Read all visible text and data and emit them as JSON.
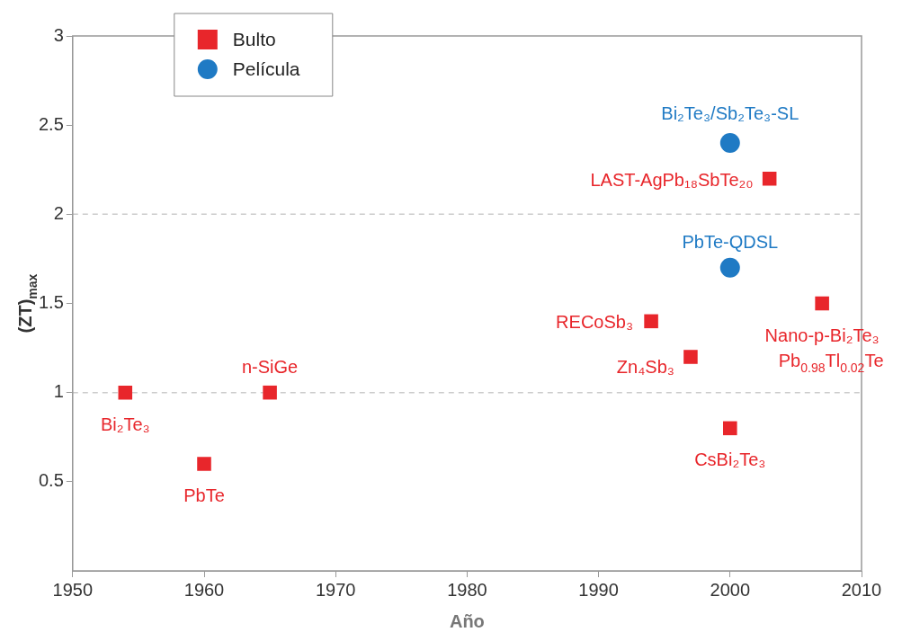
{
  "chart_data": {
    "type": "scatter",
    "xlabel": "Año",
    "ylabel": "(ZT)$_{max}$",
    "xlim": [
      1950,
      2010
    ],
    "xticks": [
      1950,
      1960,
      1970,
      1980,
      1990,
      2000,
      2010
    ],
    "ylim": [
      0,
      3
    ],
    "yticks": [
      0.5,
      1,
      1.5,
      2,
      2.5,
      3
    ],
    "legend": "top left",
    "grid": false,
    "series": [
      {
        "name": "Bulto",
        "color": "#e8262b",
        "marker": "square",
        "x": [
          1954,
          1960,
          1965,
          1994,
          1997,
          2000,
          2003,
          2007
        ],
        "values": [
          1.0,
          0.6,
          1.0,
          1.4,
          1.2,
          0.8,
          2.2,
          1.5
        ]
      },
      {
        "name": "Película",
        "color": "#1f7ac4",
        "marker": "circle",
        "x": [
          2000,
          2000
        ],
        "values": [
          2.4,
          1.7
        ]
      }
    ],
    "ref_lines": [
      {
        "axis": "y",
        "value": 1,
        "color": "#cccccc",
        "line_style": "dashed"
      },
      {
        "axis": "y",
        "value": 2,
        "color": "#cccccc",
        "line_style": "dashed"
      }
    ],
    "annotations": [
      {
        "text": "Bi₂Te₃",
        "x": 1954,
        "y": 1.0
      },
      {
        "text": "PbTe",
        "x": 1960,
        "y": 0.6
      },
      {
        "text": "n-SiGe",
        "x": 1965,
        "y": 1.0
      },
      {
        "text": "RECoSb₃",
        "x": 1994,
        "y": 1.4
      },
      {
        "text": "Zn₄Sb₃",
        "x": 1997,
        "y": 1.2
      },
      {
        "text": "CsBi₂Te₃",
        "x": 2000,
        "y": 0.8
      },
      {
        "text": "Bi₂Te₃/Sb₂Te₃-SL",
        "x": 2000,
        "y": 2.4
      },
      {
        "text": "LAST-AgPb₁₈SbTe₂₀",
        "x": 2003,
        "y": 2.2
      },
      {
        "text": "PbTe-QDSL",
        "x": 2000,
        "y": 1.7
      },
      {
        "text": "Nano-p-Bi₂Te₃",
        "x": 2007,
        "y": 1.5
      },
      {
        "text": "Pb$_{0.98}$Tl$_{0.02}$Te",
        "x": 2007,
        "y": 1.5
      }
    ]
  }
}
